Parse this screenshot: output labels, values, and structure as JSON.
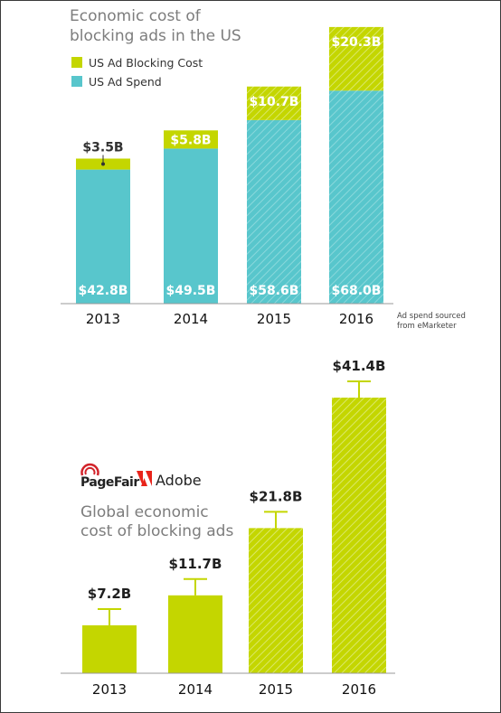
{
  "colors": {
    "blocking": "#c4d600",
    "spend": "#58c6cc",
    "axis": "#9a9a9a",
    "adobe_red": "#e8231a",
    "pagefair_red": "#d2232a"
  },
  "chart_data": [
    {
      "type": "bar",
      "stacked": true,
      "title_lines": [
        "Economic cost of",
        "blocking ads in the US"
      ],
      "legend_position": "top-left",
      "categories": [
        "2013",
        "2014",
        "2015",
        "2016"
      ],
      "series": [
        {
          "name": "US Ad Spend",
          "values": [
            42.8,
            49.5,
            58.6,
            68.0
          ],
          "labels": [
            "$42.8B",
            "$49.5B",
            "$58.6B",
            "$68.0B"
          ],
          "color": "#58c6cc"
        },
        {
          "name": "US Ad Blocking Cost",
          "values": [
            3.5,
            5.8,
            10.7,
            20.3
          ],
          "labels": [
            "$3.5B",
            "$5.8B",
            "$10.7B",
            "$20.3B"
          ],
          "color": "#c4d600"
        }
      ],
      "hatched_categories": [
        "2015",
        "2016"
      ],
      "note_lines": [
        "Ad spend sourced",
        "from eMarketer"
      ],
      "ylim": [
        0,
        90
      ],
      "grid": false
    },
    {
      "type": "bar",
      "title_lines": [
        "Global economic",
        "cost of blocking ads"
      ],
      "categories": [
        "2013",
        "2014",
        "2015",
        "2016"
      ],
      "values": [
        7.2,
        11.7,
        21.8,
        41.4
      ],
      "labels": [
        "$7.2B",
        "$11.7B",
        "$21.8B",
        "$41.4B"
      ],
      "color": "#c4d600",
      "error_bars": true,
      "hatched_categories": [
        "2015",
        "2016"
      ],
      "ylim": [
        0,
        48
      ],
      "grid": false
    }
  ],
  "logos": {
    "pagefair": "PageFair",
    "adobe": "Adobe"
  }
}
